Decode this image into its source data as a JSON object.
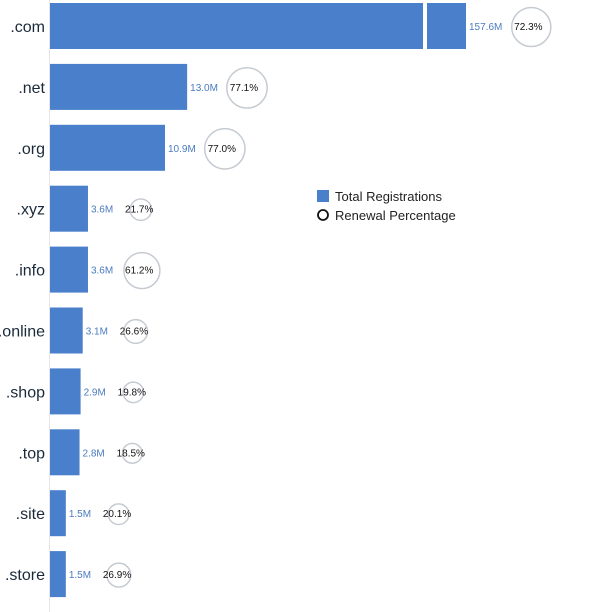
{
  "chart_data": {
    "type": "bar",
    "orientation": "horizontal",
    "categories": [
      ".com",
      ".net",
      ".org",
      ".xyz",
      ".info",
      ".online",
      ".shop",
      ".top",
      ".site",
      ".store"
    ],
    "series": [
      {
        "name": "Total Registrations",
        "values": [
          157.6,
          13.0,
          10.9,
          3.6,
          3.6,
          3.1,
          2.9,
          2.8,
          1.5,
          1.5
        ],
        "labels": [
          "157.6M",
          "13.0M",
          "10.9M",
          "3.6M",
          "3.6M",
          "3.1M",
          "2.9M",
          "2.8M",
          "1.5M",
          "1.5M"
        ],
        "color": "#4a7fcb"
      },
      {
        "name": "Renewal Percentage",
        "values": [
          72.3,
          77.1,
          77.0,
          21.7,
          61.2,
          26.6,
          19.8,
          18.5,
          20.1,
          26.9
        ],
        "labels": [
          "72.3%",
          "77.1%",
          "77.0%",
          "21.7%",
          "61.2%",
          "26.6%",
          "19.8%",
          "18.5%",
          "20.1%",
          "26.9%"
        ],
        "marker": "circle",
        "color": "#c6cbd2"
      }
    ],
    "axis_break": true,
    "legend_position": "center-right",
    "grid": false
  }
}
